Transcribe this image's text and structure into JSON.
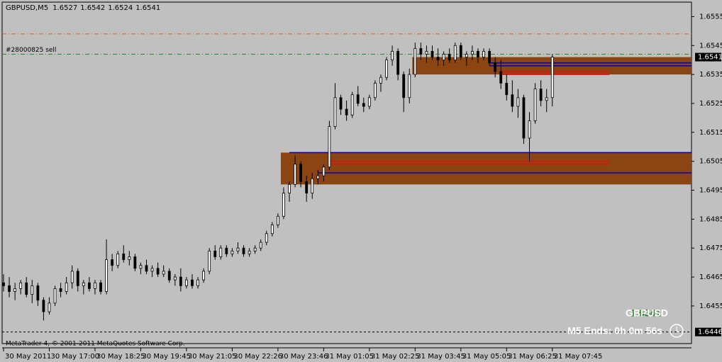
{
  "chart_data": {
    "type": "candlestick",
    "title": "GBPUSD,M5",
    "symbol": "GBPUSD",
    "timer": "M5 Ends: 0h 0m 56s",
    "footer": "MetaTrader 4, © 2001-2011 MetaQuotes Software Corp.",
    "bull_color": "#ffffff",
    "bear_color": "#000000",
    "ylim": [
      1.6442,
      1.656
    ],
    "yticks": [
      1.6555,
      1.6545,
      1.6535,
      1.6525,
      1.6515,
      1.6505,
      1.6495,
      1.6485,
      1.6475,
      1.6465,
      1.6455
    ],
    "categories": [
      "30 May 2011",
      null,
      null,
      null,
      null,
      null,
      null,
      null,
      "30 May 17:00",
      null,
      null,
      null,
      null,
      null,
      null,
      null,
      "30 May 18:25",
      null,
      null,
      null,
      null,
      null,
      null,
      null,
      "30 May 19:45",
      null,
      null,
      null,
      null,
      null,
      null,
      null,
      "30 May 21:05",
      null,
      null,
      null,
      null,
      null,
      null,
      null,
      "30 May 22:26",
      null,
      null,
      null,
      null,
      null,
      null,
      null,
      "30 May 23:46",
      null,
      null,
      null,
      null,
      null,
      null,
      null,
      "31 May 01:05",
      null,
      null,
      null,
      null,
      null,
      null,
      null,
      "31 May 02:25",
      null,
      null,
      null,
      null,
      null,
      null,
      null,
      "31 May 03:45",
      null,
      null,
      null,
      null,
      null,
      null,
      null,
      "31 May 05:05",
      null,
      null,
      null,
      null,
      null,
      null,
      null,
      "31 May 06:25",
      null,
      null,
      null,
      null,
      null,
      null,
      null,
      "31 May 07:45"
    ],
    "ohlc": [
      [
        1.6463,
        1.6466,
        1.646,
        1.6462
      ],
      [
        1.6462,
        1.6465,
        1.6458,
        1.646
      ],
      [
        1.646,
        1.6463,
        1.6457,
        1.6461
      ],
      [
        1.6461,
        1.6464,
        1.6459,
        1.6463
      ],
      [
        1.6463,
        1.6465,
        1.6458,
        1.6459
      ],
      [
        1.6459,
        1.6464,
        1.6456,
        1.6462
      ],
      [
        1.6462,
        1.6463,
        1.6455,
        1.6457
      ],
      [
        1.6457,
        1.6458,
        1.645,
        1.6453
      ],
      [
        1.6453,
        1.6458,
        1.6452,
        1.6456
      ],
      [
        1.6456,
        1.6462,
        1.6455,
        1.6461
      ],
      [
        1.6461,
        1.6463,
        1.6458,
        1.646
      ],
      [
        1.646,
        1.6465,
        1.6459,
        1.6463
      ],
      [
        1.6463,
        1.6469,
        1.6461,
        1.6467
      ],
      [
        1.6467,
        1.6468,
        1.646,
        1.6462
      ],
      [
        1.6462,
        1.6464,
        1.6459,
        1.6463
      ],
      [
        1.6463,
        1.6465,
        1.646,
        1.6461
      ],
      [
        1.6461,
        1.6464,
        1.6459,
        1.6463
      ],
      [
        1.6463,
        1.6464,
        1.6459,
        1.646
      ],
      [
        1.646,
        1.6478,
        1.6459,
        1.6471
      ],
      [
        1.6471,
        1.6473,
        1.6467,
        1.6469
      ],
      [
        1.6469,
        1.6474,
        1.6468,
        1.6473
      ],
      [
        1.6473,
        1.6476,
        1.647,
        1.6471
      ],
      [
        1.6471,
        1.6474,
        1.6469,
        1.6472
      ],
      [
        1.6472,
        1.6473,
        1.6467,
        1.6468
      ],
      [
        1.6468,
        1.647,
        1.6466,
        1.6469
      ],
      [
        1.6469,
        1.6471,
        1.6466,
        1.6467
      ],
      [
        1.6467,
        1.6469,
        1.6465,
        1.6468
      ],
      [
        1.6468,
        1.647,
        1.6465,
        1.6466
      ],
      [
        1.6466,
        1.6469,
        1.6465,
        1.6467
      ],
      [
        1.6467,
        1.6468,
        1.6463,
        1.6464
      ],
      [
        1.6464,
        1.6466,
        1.6462,
        1.6465
      ],
      [
        1.6465,
        1.6468,
        1.646,
        1.6462
      ],
      [
        1.6462,
        1.6465,
        1.6461,
        1.6464
      ],
      [
        1.6464,
        1.6466,
        1.6461,
        1.6462
      ],
      [
        1.6462,
        1.6465,
        1.6461,
        1.6464
      ],
      [
        1.6464,
        1.6468,
        1.6463,
        1.6467
      ],
      [
        1.6467,
        1.6475,
        1.6466,
        1.6474
      ],
      [
        1.6474,
        1.6476,
        1.6471,
        1.6472
      ],
      [
        1.6472,
        1.6476,
        1.6471,
        1.6475
      ],
      [
        1.6475,
        1.6476,
        1.6472,
        1.6473
      ],
      [
        1.6473,
        1.6475,
        1.6472,
        1.6474
      ],
      [
        1.6474,
        1.6477,
        1.6473,
        1.6475
      ],
      [
        1.6475,
        1.6476,
        1.6472,
        1.6473
      ],
      [
        1.6473,
        1.6475,
        1.6472,
        1.6474
      ],
      [
        1.6474,
        1.6476,
        1.6473,
        1.6475
      ],
      [
        1.6475,
        1.6478,
        1.6474,
        1.6477
      ],
      [
        1.6477,
        1.6481,
        1.6476,
        1.648
      ],
      [
        1.648,
        1.6484,
        1.6479,
        1.6483
      ],
      [
        1.6483,
        1.6487,
        1.6482,
        1.6486
      ],
      [
        1.6486,
        1.6496,
        1.6485,
        1.6494
      ],
      [
        1.6494,
        1.6498,
        1.6491,
        1.6497
      ],
      [
        1.6497,
        1.6507,
        1.6496,
        1.6504
      ],
      [
        1.6504,
        1.6505,
        1.6496,
        1.6498
      ],
      [
        1.6498,
        1.65,
        1.6491,
        1.6494
      ],
      [
        1.6494,
        1.6501,
        1.6492,
        1.6499
      ],
      [
        1.6499,
        1.6502,
        1.6497,
        1.65
      ],
      [
        1.65,
        1.6504,
        1.6498,
        1.6503
      ],
      [
        1.6503,
        1.6519,
        1.6502,
        1.6517
      ],
      [
        1.6517,
        1.6532,
        1.6516,
        1.6527
      ],
      [
        1.6527,
        1.6528,
        1.6521,
        1.6523
      ],
      [
        1.6523,
        1.6526,
        1.6519,
        1.6521
      ],
      [
        1.6521,
        1.6529,
        1.652,
        1.6528
      ],
      [
        1.6528,
        1.6531,
        1.6524,
        1.6525
      ],
      [
        1.6525,
        1.6527,
        1.6522,
        1.6524
      ],
      [
        1.6524,
        1.6528,
        1.6523,
        1.6527
      ],
      [
        1.6527,
        1.6533,
        1.6526,
        1.6532
      ],
      [
        1.6532,
        1.6535,
        1.6529,
        1.6534
      ],
      [
        1.6534,
        1.6541,
        1.6533,
        1.654
      ],
      [
        1.654,
        1.6545,
        1.6538,
        1.6543
      ],
      [
        1.6543,
        1.6544,
        1.6533,
        1.6535
      ],
      [
        1.6535,
        1.6536,
        1.6522,
        1.6527
      ],
      [
        1.6527,
        1.6537,
        1.6525,
        1.6535
      ],
      [
        1.6535,
        1.6546,
        1.6534,
        1.6544
      ],
      [
        1.6544,
        1.6546,
        1.654,
        1.6542
      ],
      [
        1.6542,
        1.6545,
        1.6539,
        1.6543
      ],
      [
        1.6543,
        1.6545,
        1.654,
        1.6541
      ],
      [
        1.6541,
        1.6544,
        1.6538,
        1.654
      ],
      [
        1.654,
        1.6543,
        1.6538,
        1.6542
      ],
      [
        1.6542,
        1.6544,
        1.6539,
        1.654
      ],
      [
        1.654,
        1.6546,
        1.6539,
        1.6545
      ],
      [
        1.6545,
        1.6546,
        1.654,
        1.6541
      ],
      [
        1.6541,
        1.6543,
        1.6538,
        1.6542
      ],
      [
        1.6542,
        1.6545,
        1.654,
        1.6543
      ],
      [
        1.6543,
        1.6544,
        1.6539,
        1.6541
      ],
      [
        1.6541,
        1.6544,
        1.654,
        1.6543
      ],
      [
        1.6543,
        1.6544,
        1.6538,
        1.6539
      ],
      [
        1.6539,
        1.6541,
        1.6534,
        1.6536
      ],
      [
        1.6536,
        1.654,
        1.653,
        1.6532
      ],
      [
        1.6532,
        1.6535,
        1.6526,
        1.6528
      ],
      [
        1.6528,
        1.6533,
        1.6522,
        1.6524
      ],
      [
        1.6524,
        1.653,
        1.652,
        1.6527
      ],
      [
        1.6527,
        1.6528,
        1.6511,
        1.6513
      ],
      [
        1.6513,
        1.6522,
        1.6505,
        1.6519
      ],
      [
        1.6519,
        1.6532,
        1.6518,
        1.653
      ],
      [
        1.653,
        1.6533,
        1.6524,
        1.6526
      ],
      [
        1.6526,
        1.653,
        1.6522,
        1.6527
      ],
      [
        1.6527,
        1.6542,
        1.6524,
        1.6541
      ]
    ],
    "zones": [
      {
        "from": 1.6535,
        "to": 1.6541,
        "start": 72,
        "color": "#8b4513"
      },
      {
        "from": 1.6497,
        "to": 1.6508,
        "start": 49,
        "color": "#8b4513"
      }
    ],
    "levels": [
      {
        "value": 1.6508,
        "start": 50,
        "color": "#0000c8"
      },
      {
        "value": 1.6501,
        "start": 55,
        "color": "#0000c8"
      },
      {
        "value": 1.6505,
        "start": 57,
        "end": 106,
        "color": "#e01010"
      },
      {
        "value": 1.6504,
        "start": 57,
        "end": 106,
        "color": "#e01010"
      },
      {
        "value": 1.6539,
        "start": 85,
        "color": "#0000c8"
      },
      {
        "value": 1.6538,
        "start": 85,
        "color": "#0000c8"
      },
      {
        "value": 1.6536,
        "start": 87,
        "end": 106,
        "color": "#e01010"
      },
      {
        "value": 1.6535,
        "start": 87,
        "end": 106,
        "color": "#e01010"
      }
    ],
    "lines": [
      {
        "value": 1.6549,
        "color": "#e0602a",
        "style": "dashdot"
      },
      {
        "value": 1.6542,
        "color": "#1f8a1f",
        "style": "dashdot",
        "label": "#28000825 sell"
      },
      {
        "value": 1.6446,
        "color": "#000000",
        "style": "dashed"
      }
    ]
  }
}
